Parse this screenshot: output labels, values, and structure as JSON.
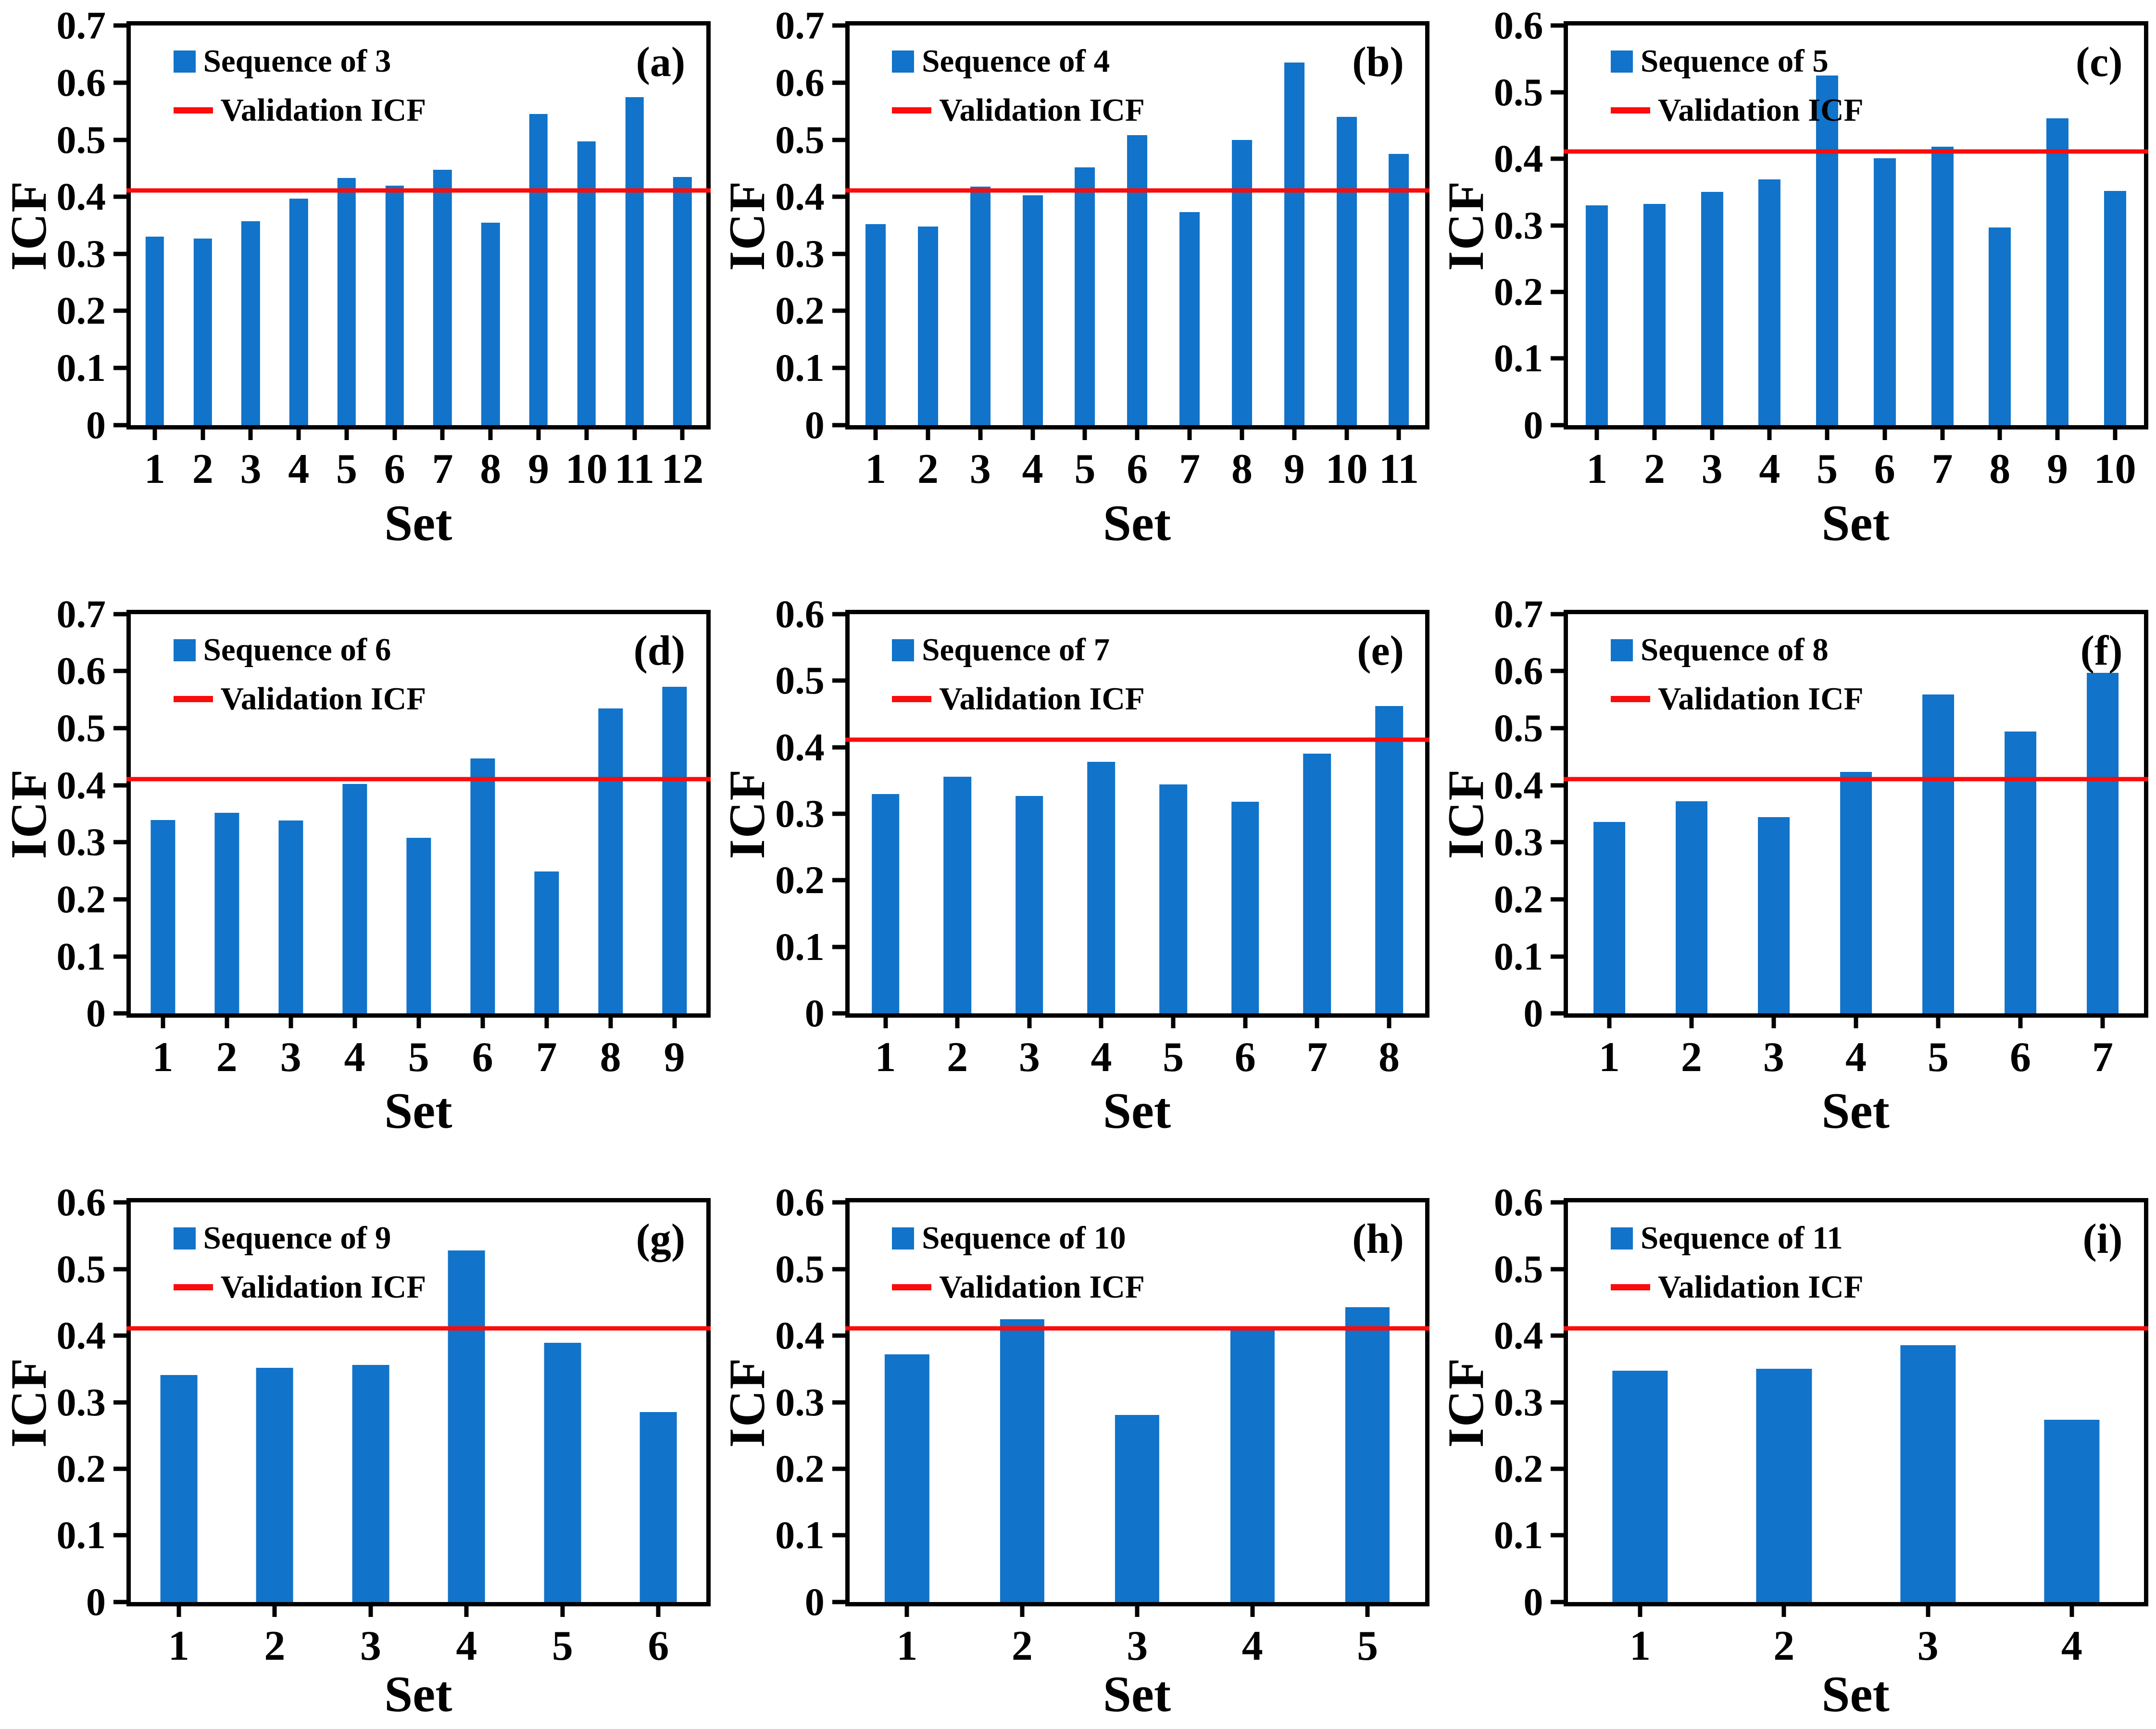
{
  "figure": {
    "description_title": "ICF bar charts per sequence length with validation reference line",
    "validation_icf": 0.411
  },
  "colors": {
    "bar": "#1173C9",
    "validation_line": "#FB0C0C",
    "axis": "#000000",
    "background": "#FFFFFF"
  },
  "chart_data": [
    {
      "type": "bar",
      "panel": "(a)",
      "series_label": "Sequence of 3",
      "validation_label": "Validation ICF",
      "xlabel": "Set",
      "ylabel": "ICF",
      "ylim": [
        0,
        0.7
      ],
      "ytick_step": 0.1,
      "grid": false,
      "legend_position": "top-left",
      "categories": [
        "1",
        "2",
        "3",
        "4",
        "5",
        "6",
        "7",
        "8",
        "9",
        "10",
        "11",
        "12"
      ],
      "values": [
        0.33,
        0.327,
        0.357,
        0.397,
        0.433,
        0.42,
        0.447,
        0.355,
        0.545,
        0.497,
        0.575,
        0.435
      ],
      "validation_line": 0.411
    },
    {
      "type": "bar",
      "panel": "(b)",
      "series_label": "Sequence of 4",
      "validation_label": "Validation ICF",
      "xlabel": "Set",
      "ylabel": "ICF",
      "ylim": [
        0,
        0.7
      ],
      "ytick_step": 0.1,
      "grid": false,
      "legend_position": "top-left",
      "categories": [
        "1",
        "2",
        "3",
        "4",
        "5",
        "6",
        "7",
        "8",
        "9",
        "10",
        "11"
      ],
      "values": [
        0.352,
        0.348,
        0.418,
        0.403,
        0.452,
        0.508,
        0.373,
        0.5,
        0.635,
        0.54,
        0.475
      ],
      "validation_line": 0.411
    },
    {
      "type": "bar",
      "panel": "(c)",
      "series_label": "Sequence of 5",
      "validation_label": "Validation ICF",
      "xlabel": "Set",
      "ylabel": "ICF",
      "ylim": [
        0,
        0.6
      ],
      "ytick_step": 0.1,
      "grid": false,
      "legend_position": "top-left",
      "categories": [
        "1",
        "2",
        "3",
        "4",
        "5",
        "6",
        "7",
        "8",
        "9",
        "10"
      ],
      "values": [
        0.33,
        0.332,
        0.35,
        0.369,
        0.525,
        0.401,
        0.418,
        0.297,
        0.461,
        0.352
      ],
      "validation_line": 0.411
    },
    {
      "type": "bar",
      "panel": "(d)",
      "series_label": "Sequence of 6",
      "validation_label": "Validation ICF",
      "xlabel": "Set",
      "ylabel": "ICF",
      "ylim": [
        0,
        0.7
      ],
      "ytick_step": 0.1,
      "grid": false,
      "legend_position": "top-left",
      "categories": [
        "1",
        "2",
        "3",
        "4",
        "5",
        "6",
        "7",
        "8",
        "9"
      ],
      "values": [
        0.339,
        0.352,
        0.338,
        0.402,
        0.308,
        0.447,
        0.249,
        0.535,
        0.573
      ],
      "validation_line": 0.411
    },
    {
      "type": "bar",
      "panel": "(e)",
      "series_label": "Sequence of 7",
      "validation_label": "Validation ICF",
      "xlabel": "Set",
      "ylabel": "ICF",
      "ylim": [
        0,
        0.6
      ],
      "ytick_step": 0.1,
      "grid": false,
      "legend_position": "top-left",
      "categories": [
        "1",
        "2",
        "3",
        "4",
        "5",
        "6",
        "7",
        "8"
      ],
      "values": [
        0.33,
        0.356,
        0.327,
        0.378,
        0.344,
        0.318,
        0.39,
        0.462
      ],
      "validation_line": 0.411
    },
    {
      "type": "bar",
      "panel": "(f)",
      "series_label": "Sequence of 8",
      "validation_label": "Validation ICF",
      "xlabel": "Set",
      "ylabel": "ICF",
      "ylim": [
        0,
        0.7
      ],
      "ytick_step": 0.1,
      "grid": false,
      "legend_position": "top-left",
      "categories": [
        "1",
        "2",
        "3",
        "4",
        "5",
        "6",
        "7"
      ],
      "values": [
        0.336,
        0.372,
        0.344,
        0.423,
        0.559,
        0.494,
        0.597
      ],
      "validation_line": 0.411
    },
    {
      "type": "bar",
      "panel": "(g)",
      "series_label": "Sequence of 9",
      "validation_label": "Validation ICF",
      "xlabel": "Set",
      "ylabel": "ICF",
      "ylim": [
        0,
        0.6
      ],
      "ytick_step": 0.1,
      "grid": false,
      "legend_position": "top-left",
      "categories": [
        "1",
        "2",
        "3",
        "4",
        "5",
        "6"
      ],
      "values": [
        0.341,
        0.352,
        0.356,
        0.528,
        0.389,
        0.285
      ],
      "validation_line": 0.411
    },
    {
      "type": "bar",
      "panel": "(h)",
      "series_label": "Sequence of 10",
      "validation_label": "Validation ICF",
      "xlabel": "Set",
      "ylabel": "ICF",
      "ylim": [
        0,
        0.6
      ],
      "ytick_step": 0.1,
      "grid": false,
      "legend_position": "top-left",
      "categories": [
        "1",
        "2",
        "3",
        "4",
        "5"
      ],
      "values": [
        0.372,
        0.425,
        0.281,
        0.41,
        0.443
      ],
      "validation_line": 0.411
    },
    {
      "type": "bar",
      "panel": "(i)",
      "series_label": "Sequence of 11",
      "validation_label": "Validation ICF",
      "xlabel": "Set",
      "ylabel": "ICF",
      "ylim": [
        0,
        0.6
      ],
      "ytick_step": 0.1,
      "grid": false,
      "legend_position": "top-left",
      "categories": [
        "1",
        "2",
        "3",
        "4"
      ],
      "values": [
        0.347,
        0.35,
        0.386,
        0.274
      ],
      "validation_line": 0.411
    }
  ]
}
